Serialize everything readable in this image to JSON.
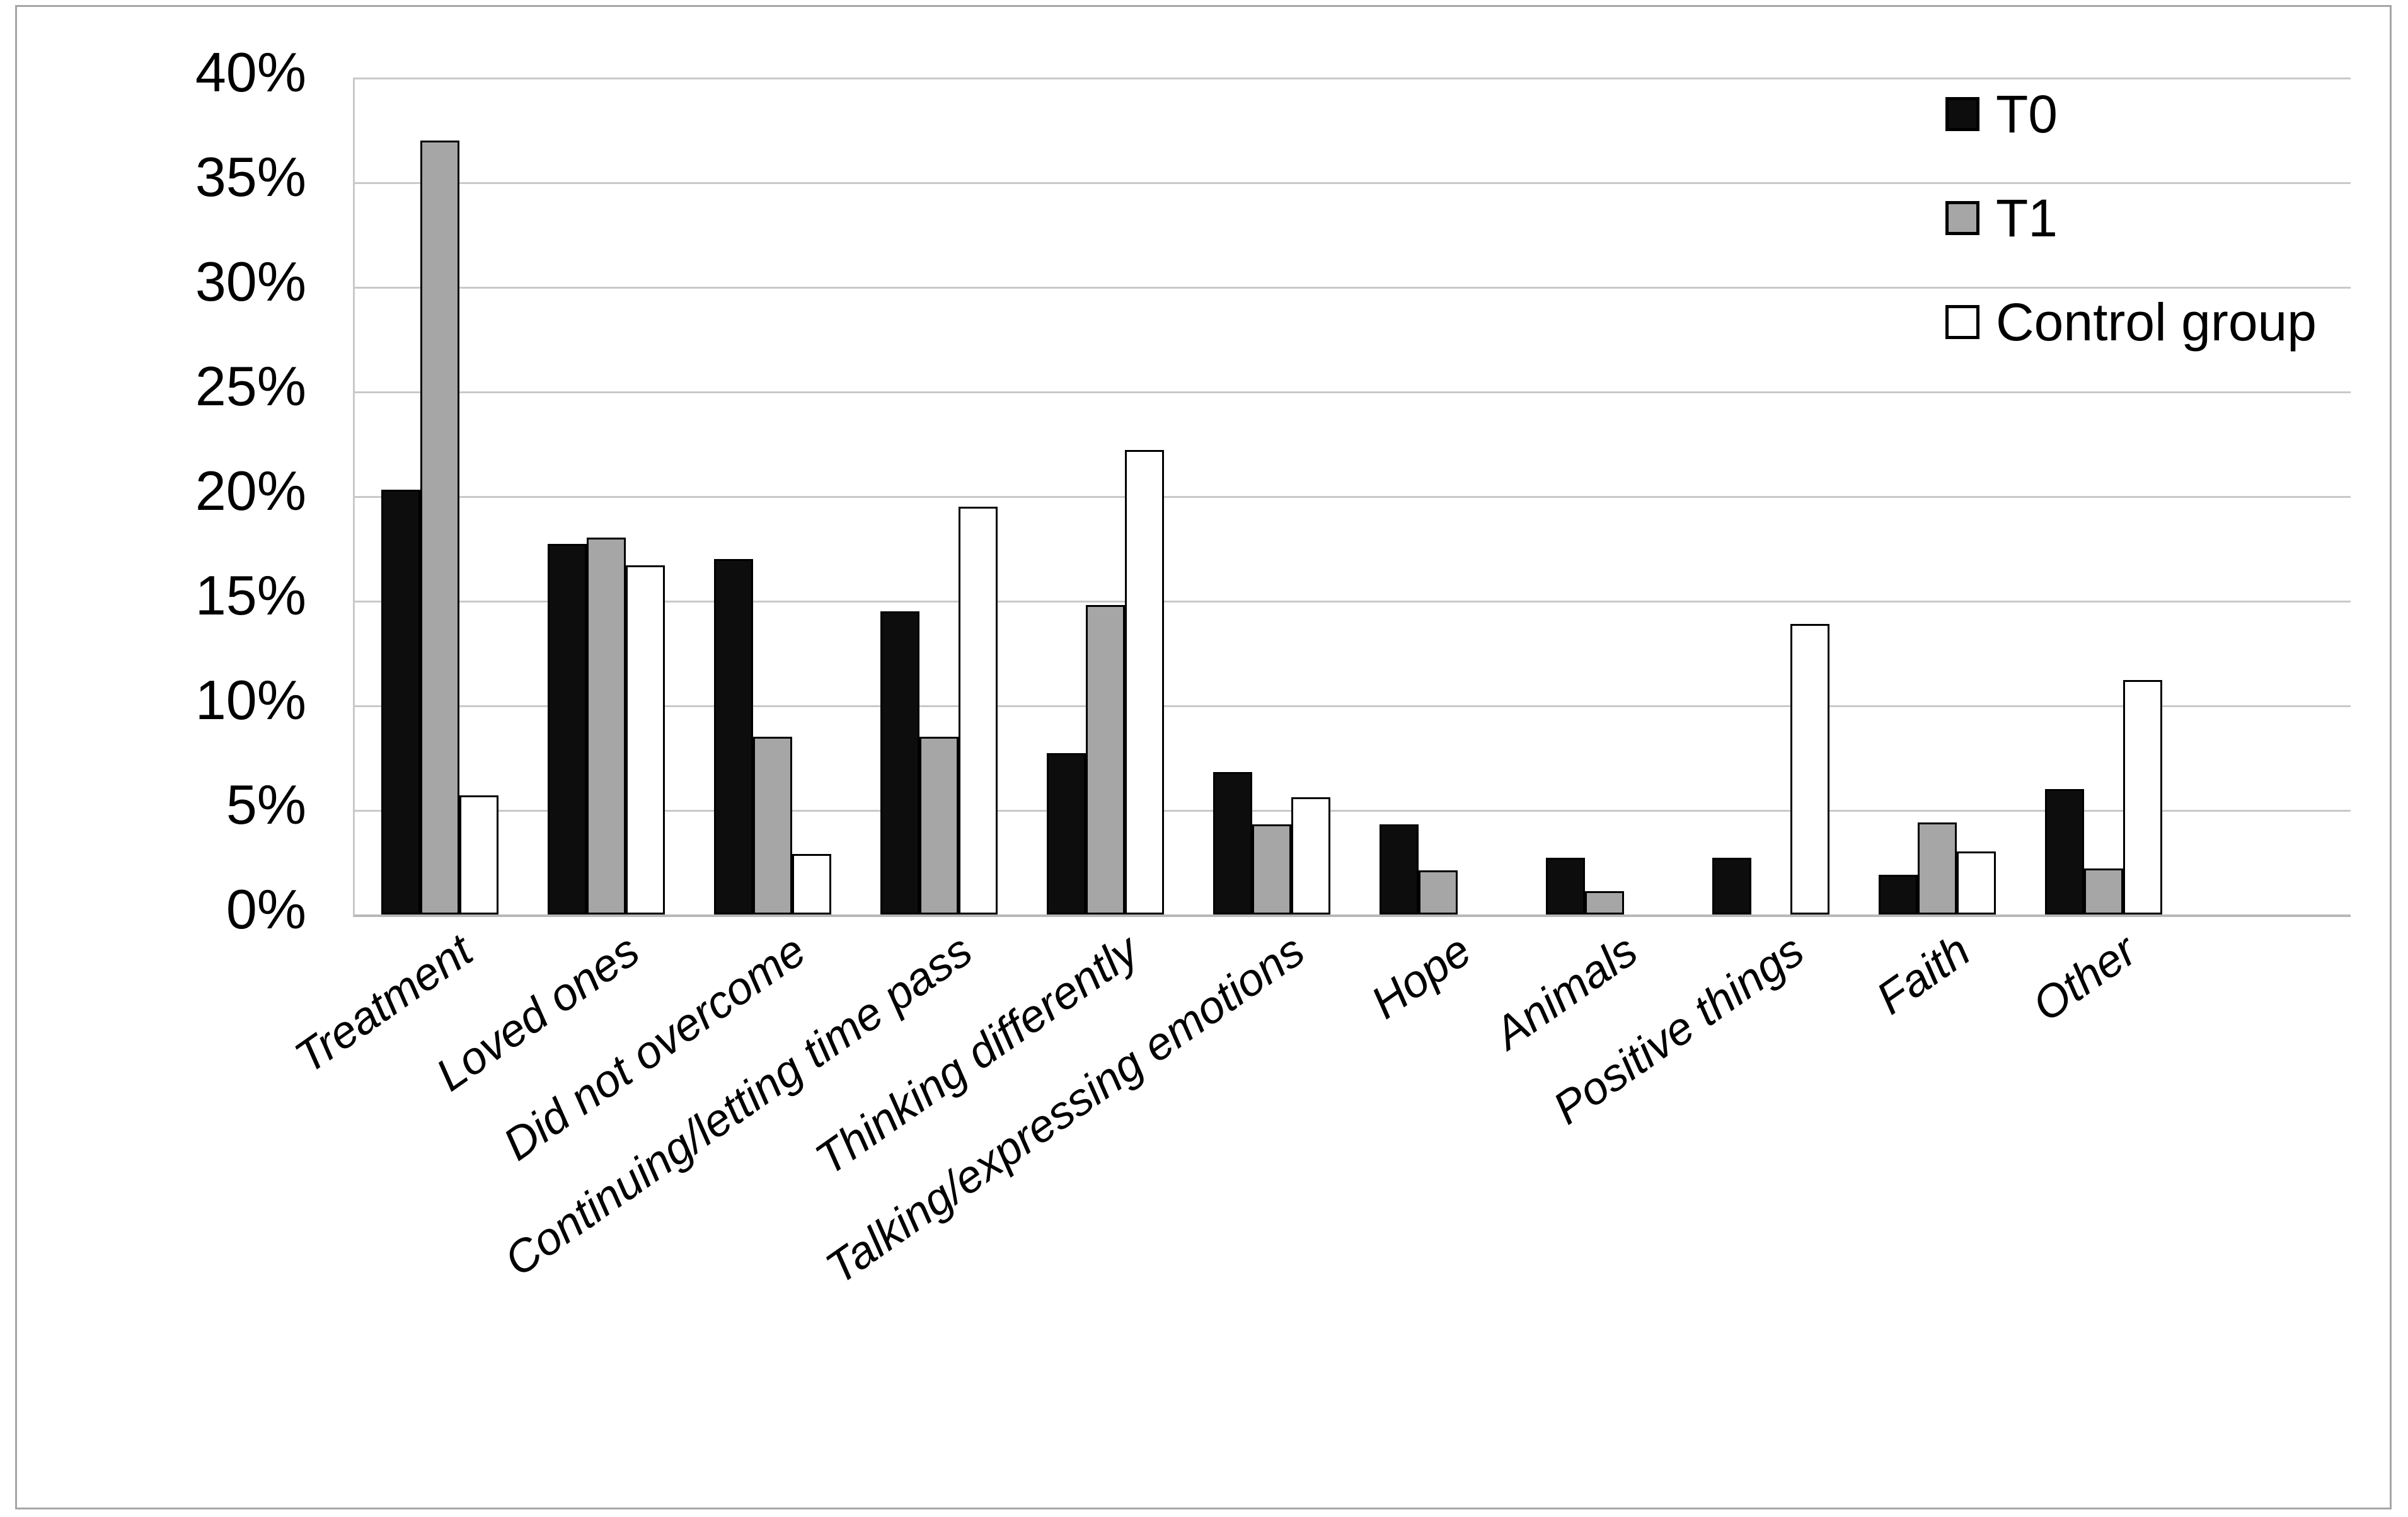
{
  "figure": {
    "background_color": "#ffffff",
    "border_color": "#a6a6a6"
  },
  "chart_data": {
    "type": "bar",
    "title": "",
    "xlabel": "",
    "ylabel": "",
    "categories": [
      "Treatment",
      "Loved ones",
      "Did not overcome",
      "Continuing/letting time pass",
      "Thinking differently",
      "Talking/expressing emotions",
      "Hope",
      "Animals",
      "Positive things",
      "Faith",
      "Other"
    ],
    "series": [
      {
        "name": "T0",
        "fill": "#0d0d0d",
        "values": [
          20.3,
          17.7,
          17.0,
          14.5,
          7.7,
          6.8,
          4.3,
          2.7,
          2.7,
          1.9,
          6.0
        ]
      },
      {
        "name": "T1",
        "fill": "#a6a6a6",
        "values": [
          37.0,
          18.0,
          8.5,
          8.5,
          14.8,
          4.3,
          2.1,
          1.1,
          0,
          4.4,
          2.2
        ]
      },
      {
        "name": "Control group",
        "fill": "#ffffff",
        "values": [
          5.7,
          16.7,
          2.9,
          19.5,
          22.2,
          5.6,
          0,
          0,
          13.9,
          3.0,
          11.2
        ]
      }
    ],
    "ylim": [
      0,
      40
    ],
    "ytick_step": 5,
    "ytick_labels": [
      "0%",
      "5%",
      "10%",
      "15%",
      "20%",
      "25%",
      "30%",
      "35%",
      "40%"
    ],
    "grid": "horizontal",
    "gridline_color": "#c9c9c9",
    "axis_color": "#b8b8b8",
    "bar_outline_color": "#000000",
    "legend_position": "top-right",
    "x_label_rotation_deg": -35
  }
}
